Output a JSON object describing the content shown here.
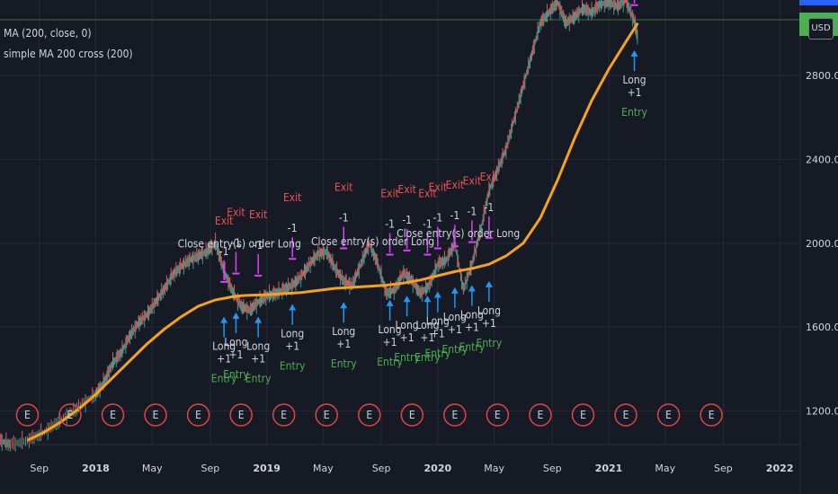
{
  "legend": {
    "line1": "MA (200, close, 0)",
    "line2": "simple MA 200 cross (200)"
  },
  "currency_badge": "USD",
  "colors": {
    "background": "#161a25",
    "grid": "#252936",
    "ma_line": "#f7a21b",
    "price_line": "#4caf50",
    "up_candle": "#26a69a",
    "down_candle": "#ef5350",
    "entry_arrow": "#2196f3",
    "exit_arrow": "#e040fb",
    "entry_text": "#4caf50",
    "exit_text": "#ef5350",
    "label_text": "#d1d4dc",
    "earnings_circle": "#e04545",
    "accent_blue": "#2962ff"
  },
  "chart_data": {
    "type": "line",
    "title": "",
    "xlabel": "",
    "ylabel": "",
    "x_ticks": [
      {
        "label": "Sep",
        "t": 2017.67
      },
      {
        "label": "2018",
        "t": 2018.0
      },
      {
        "label": "May",
        "t": 2018.33
      },
      {
        "label": "Sep",
        "t": 2018.67
      },
      {
        "label": "2019",
        "t": 2019.0
      },
      {
        "label": "May",
        "t": 2019.33
      },
      {
        "label": "Sep",
        "t": 2019.67
      },
      {
        "label": "2020",
        "t": 2020.0
      },
      {
        "label": "May",
        "t": 2020.33
      },
      {
        "label": "Sep",
        "t": 2020.67
      },
      {
        "label": "2021",
        "t": 2021.0
      },
      {
        "label": "May",
        "t": 2021.33
      },
      {
        "label": "Sep",
        "t": 2021.67
      },
      {
        "label": "2022",
        "t": 2022.0
      }
    ],
    "y_ticks": [
      1200,
      1600,
      2000,
      2400,
      2800
    ],
    "y_tick_labels": [
      "1200.00",
      "1600.00",
      "2000.00",
      "2400.00",
      "2800.00"
    ],
    "xlim": [
      2017.44,
      2022.12
    ],
    "ylim": [
      1040,
      3160
    ],
    "series": [
      {
        "name": "MA (200, close, 0)",
        "role": "ma",
        "x": [
          2017.6,
          2017.7,
          2017.8,
          2017.9,
          2018.0,
          2018.1,
          2018.2,
          2018.3,
          2018.4,
          2018.5,
          2018.6,
          2018.7,
          2018.8,
          2018.85,
          2018.9,
          2019.0,
          2019.1,
          2019.2,
          2019.3,
          2019.4,
          2019.5,
          2019.6,
          2019.7,
          2019.8,
          2019.9,
          2020.0,
          2020.1,
          2020.2,
          2020.3,
          2020.4,
          2020.5,
          2020.6,
          2020.7,
          2020.8,
          2020.9,
          2021.0,
          2021.1,
          2021.17
        ],
        "y": [
          1060,
          1100,
          1150,
          1210,
          1280,
          1360,
          1440,
          1520,
          1590,
          1650,
          1700,
          1730,
          1745,
          1750,
          1752,
          1755,
          1760,
          1765,
          1775,
          1785,
          1790,
          1795,
          1800,
          1810,
          1825,
          1845,
          1865,
          1880,
          1900,
          1940,
          2000,
          2120,
          2300,
          2500,
          2680,
          2830,
          2960,
          3050
        ]
      },
      {
        "name": "Price",
        "role": "price",
        "x": [
          2017.44,
          2017.5,
          2017.6,
          2017.7,
          2017.8,
          2017.9,
          2018.0,
          2018.05,
          2018.1,
          2018.15,
          2018.2,
          2018.25,
          2018.3,
          2018.35,
          2018.4,
          2018.45,
          2018.5,
          2018.55,
          2018.6,
          2018.65,
          2018.7,
          2018.75,
          2018.8,
          2018.85,
          2018.9,
          2018.95,
          2019.0,
          2019.05,
          2019.1,
          2019.15,
          2019.2,
          2019.25,
          2019.3,
          2019.35,
          2019.4,
          2019.45,
          2019.5,
          2019.55,
          2019.6,
          2019.65,
          2019.7,
          2019.75,
          2019.8,
          2019.85,
          2019.9,
          2019.95,
          2020.0,
          2020.05,
          2020.1,
          2020.15,
          2020.2,
          2020.25,
          2020.3,
          2020.35,
          2020.4,
          2020.45,
          2020.5,
          2020.55,
          2020.6,
          2020.65,
          2020.7,
          2020.75,
          2020.8,
          2020.85,
          2020.9,
          2020.95,
          2021.0,
          2021.05,
          2021.1,
          2021.15,
          2021.17
        ],
        "y": [
          1060,
          1040,
          1060,
          1100,
          1160,
          1220,
          1280,
          1340,
          1430,
          1480,
          1560,
          1620,
          1660,
          1720,
          1780,
          1850,
          1890,
          1920,
          1940,
          1960,
          2000,
          1870,
          1770,
          1700,
          1680,
          1720,
          1750,
          1760,
          1780,
          1800,
          1840,
          1900,
          1950,
          1960,
          1880,
          1820,
          1800,
          1900,
          2000,
          1900,
          1760,
          1780,
          1860,
          1820,
          1760,
          1800,
          1900,
          1920,
          2000,
          1780,
          1900,
          2060,
          2250,
          2350,
          2450,
          2600,
          2750,
          2900,
          3050,
          3100,
          3150,
          3050,
          3080,
          3120,
          3100,
          3140,
          3150,
          3130,
          3160,
          3060,
          2980
        ]
      }
    ],
    "trades": [
      {
        "x": 2018.75,
        "entry_y": 1680,
        "exit_y": 1790
      },
      {
        "x": 2018.82,
        "entry_y": 1700,
        "exit_y": 1830
      },
      {
        "x": 2018.95,
        "entry_y": 1680,
        "exit_y": 1820
      },
      {
        "x": 2019.15,
        "entry_y": 1740,
        "exit_y": 1900
      },
      {
        "x": 2019.45,
        "entry_y": 1750,
        "exit_y": 1950
      },
      {
        "x": 2019.72,
        "entry_y": 1760,
        "exit_y": 1920
      },
      {
        "x": 2019.82,
        "entry_y": 1780,
        "exit_y": 1940
      },
      {
        "x": 2019.94,
        "entry_y": 1780,
        "exit_y": 1920
      },
      {
        "x": 2020.0,
        "entry_y": 1800,
        "exit_y": 1950
      },
      {
        "x": 2020.1,
        "entry_y": 1820,
        "exit_y": 1960
      },
      {
        "x": 2020.2,
        "entry_y": 1830,
        "exit_y": 1980
      },
      {
        "x": 2020.3,
        "entry_y": 1850,
        "exit_y": 2000
      },
      {
        "x": 2021.15,
        "entry_y": 2950,
        "exit_y": 3110
      }
    ],
    "annotations": {
      "entry_label": "Entry",
      "exit_label": "Exit",
      "long_label": "Long",
      "plus_one": "+1",
      "minus_one": "-1",
      "close_entry": "Close entry(s) order Long"
    },
    "earnings_marker": "E",
    "earnings_x": [
      2017.44,
      2017.6,
      2017.85,
      2018.1,
      2018.35,
      2018.6,
      2018.85,
      2019.1,
      2019.35,
      2019.6,
      2019.85,
      2020.1,
      2020.35,
      2020.6,
      2020.85,
      2021.1,
      2021.35,
      2021.6
    ]
  }
}
